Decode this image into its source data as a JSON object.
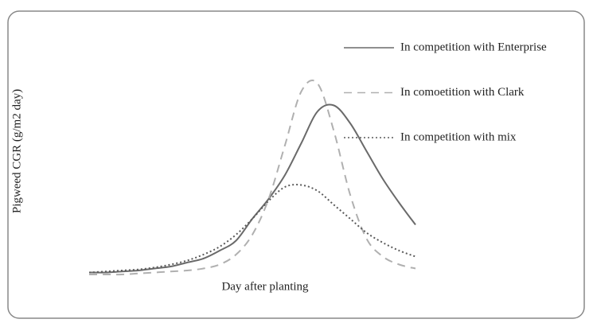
{
  "chart_data": {
    "type": "line",
    "x_label": "Day after planting",
    "y_label": "Pigweed CGR (g/m2 day)",
    "x": [
      0,
      1,
      2,
      3,
      4,
      5,
      6,
      7,
      8,
      9,
      10,
      11,
      12,
      13,
      14,
      15,
      16,
      17,
      18,
      19,
      20
    ],
    "xlim": [
      0,
      20
    ],
    "ylim": [
      0,
      100
    ],
    "series": [
      {
        "name": "In competition with Enterprise",
        "color": "#6a6a6a",
        "style": "solid",
        "values": [
          1,
          1,
          1.5,
          2,
          3,
          4,
          6,
          8,
          12,
          17,
          28,
          38,
          50,
          66,
          82,
          85,
          76,
          62,
          48,
          36,
          25
        ]
      },
      {
        "name": "In comoetition with Clark",
        "color": "#b0b0b0",
        "style": "dashed",
        "values": [
          0,
          0,
          0,
          0.5,
          1,
          1.5,
          2,
          3,
          5,
          10,
          20,
          38,
          65,
          92,
          96,
          72,
          40,
          18,
          9,
          5,
          3
        ]
      },
      {
        "name": "In competition with mix",
        "color": "#5a5a5a",
        "style": "dotted",
        "values": [
          1,
          1.5,
          2,
          2.5,
          3.5,
          5,
          7,
          10,
          14,
          20,
          28,
          37,
          44,
          45,
          42,
          35,
          28,
          21,
          16,
          12,
          9
        ]
      }
    ],
    "legend": "upper right"
  }
}
